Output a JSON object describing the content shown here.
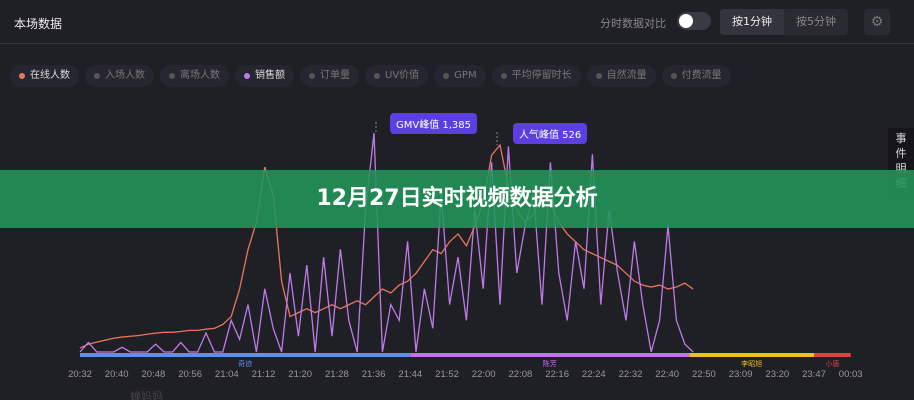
{
  "header": {
    "title": "本场数据",
    "compare_label": "分时数据对比",
    "compare_on": false,
    "seg": [
      "按1分钟",
      "按5分钟"
    ],
    "seg_active": 0,
    "settings_icon": "gear-icon"
  },
  "legend": [
    {
      "label": "在线人数",
      "on": true,
      "color": "#e8775a"
    },
    {
      "label": "入场人数",
      "on": false
    },
    {
      "label": "离场人数",
      "on": false
    },
    {
      "label": "销售额",
      "on": true,
      "color": "#c07ae8"
    },
    {
      "label": "订单量",
      "on": false
    },
    {
      "label": "UV价值",
      "on": false
    },
    {
      "label": "GPM",
      "on": false
    },
    {
      "label": "平均停留时长",
      "on": false
    },
    {
      "label": "自然流量",
      "on": false
    },
    {
      "label": "付费流量",
      "on": false
    }
  ],
  "side_panel": "事件明细",
  "banner": "12月27日实时视频数据分析",
  "watermark": "蝉妈妈",
  "chart_data": {
    "type": "line",
    "x_ticks": [
      "20:32",
      "20:40",
      "20:48",
      "20:56",
      "21:04",
      "21:12",
      "21:20",
      "21:28",
      "21:36",
      "21:44",
      "21:52",
      "22:00",
      "22:08",
      "22:16",
      "22:24",
      "22:32",
      "22:40",
      "22:50",
      "23:09",
      "23:20",
      "23:47",
      "00:03"
    ],
    "annotations": [
      {
        "label": "GMV峰值 1,385"
      },
      {
        "label": "人气峰值 526"
      }
    ],
    "series": [
      {
        "name": "在线人数",
        "color": "#e8775a",
        "peak": 526,
        "values": [
          10,
          20,
          25,
          30,
          35,
          38,
          40,
          42,
          45,
          48,
          50,
          50,
          52,
          55,
          55,
          58,
          60,
          70,
          90,
          160,
          260,
          330,
          470,
          400,
          180,
          90,
          100,
          110,
          100,
          110,
          120,
          110,
          120,
          130,
          120,
          140,
          160,
          150,
          170,
          180,
          200,
          230,
          260,
          250,
          280,
          300,
          270,
          320,
          380,
          500,
          526,
          420,
          360,
          330,
          350,
          400,
          380,
          330,
          300,
          280,
          260,
          250,
          240,
          230,
          220,
          200,
          180,
          170,
          165,
          170,
          160,
          165,
          175,
          160
        ]
      },
      {
        "name": "销售额",
        "color": "#c07ae8",
        "peak": 1385,
        "values": [
          0,
          60,
          0,
          0,
          0,
          30,
          0,
          0,
          0,
          50,
          0,
          0,
          60,
          0,
          0,
          120,
          0,
          0,
          200,
          80,
          300,
          0,
          400,
          150,
          0,
          500,
          100,
          550,
          0,
          600,
          100,
          650,
          200,
          0,
          900,
          1385,
          0,
          300,
          200,
          700,
          0,
          400,
          150,
          1000,
          300,
          600,
          200,
          900,
          400,
          1200,
          300,
          1300,
          500,
          800,
          1000,
          300,
          1200,
          500,
          200,
          700,
          400,
          1250,
          300,
          900,
          500,
          200,
          700,
          300,
          0,
          200,
          800,
          200,
          50,
          0
        ]
      }
    ],
    "bands": [
      {
        "label": "奇迹",
        "color": "#5b8ff0",
        "from": "20:32",
        "to": "21:44"
      },
      {
        "label": "陈芳",
        "color": "#c86ef0",
        "from": "21:44",
        "to": "22:46"
      },
      {
        "label": "李昭旭",
        "color": "#f0c020",
        "from": "22:46",
        "to": "23:47"
      },
      {
        "label": "小唐",
        "color": "#e04040",
        "from": "23:47",
        "to": "00:03"
      }
    ],
    "grid": false
  }
}
